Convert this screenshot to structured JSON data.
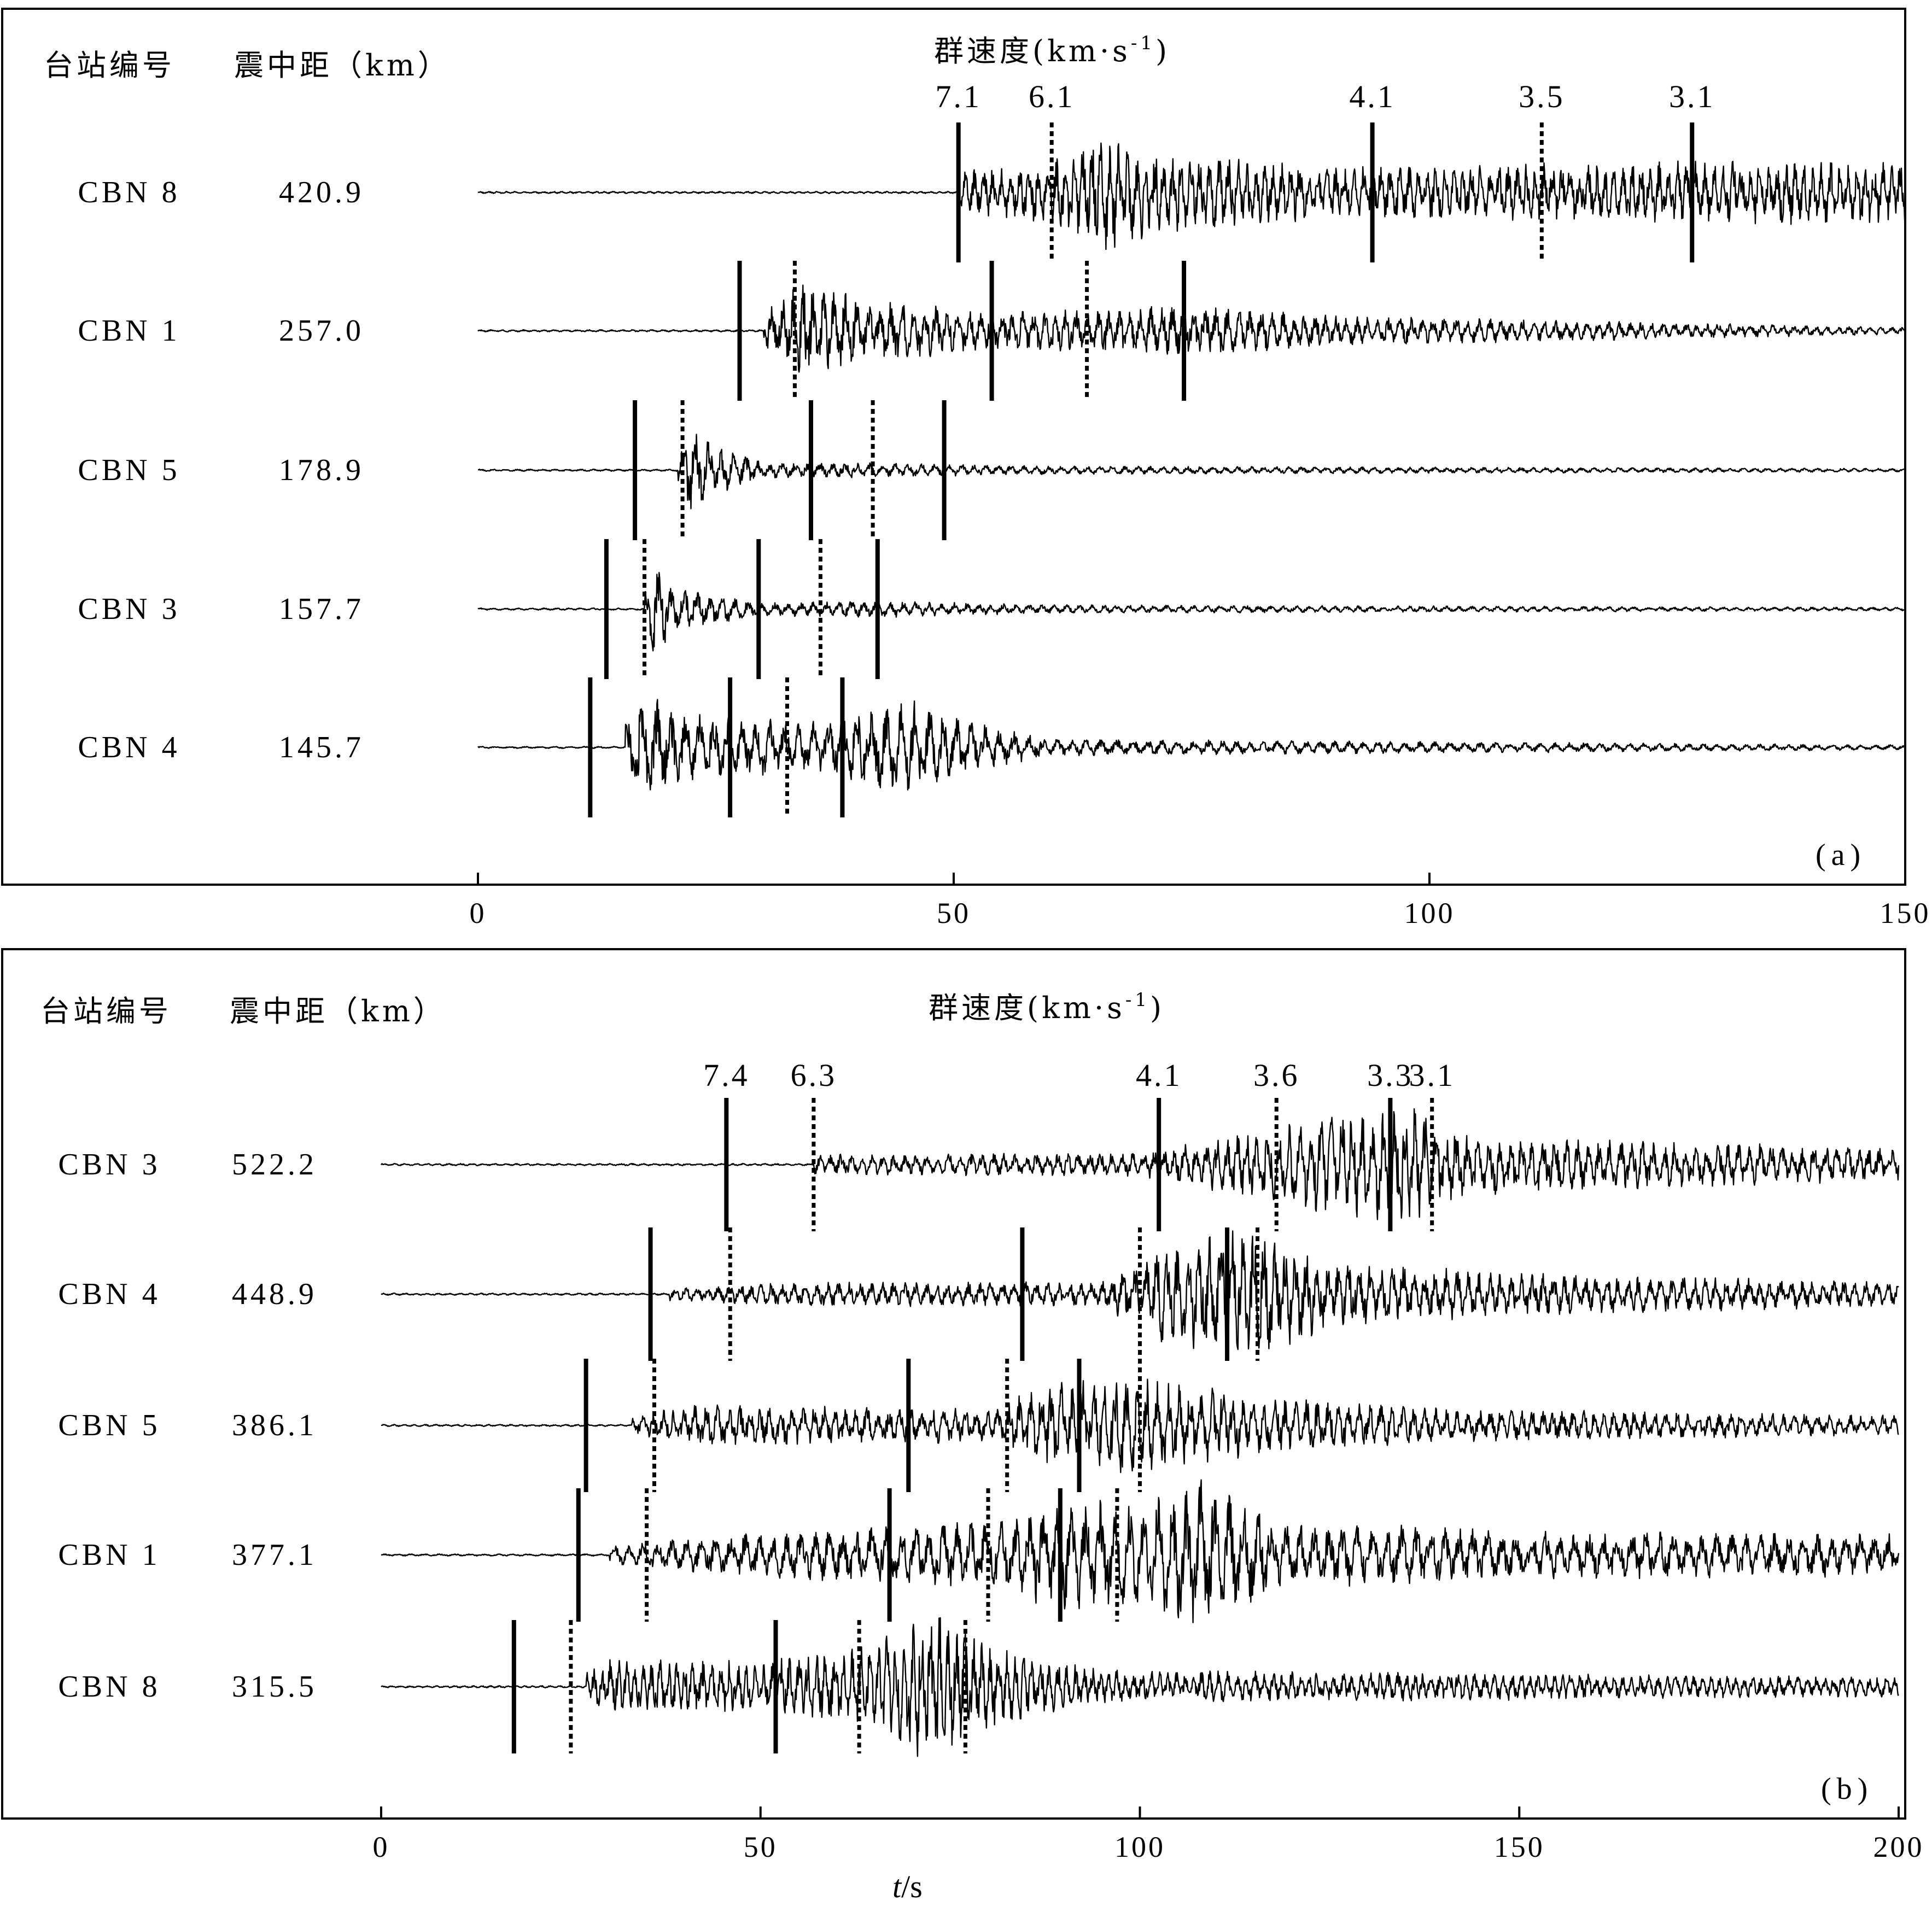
{
  "chart_data": [
    {
      "type": "line",
      "panel_label": "(a)",
      "header_station": "台站编号",
      "header_distance": "震中距（km）",
      "header_velocity": "群速度(km·s",
      "header_velocity_sup": "-1",
      "header_velocity_close": ")",
      "xlim": [
        0,
        150
      ],
      "xticks": [
        0,
        50,
        100,
        150
      ],
      "xticklabels": [
        "0",
        "50",
        "100",
        "150"
      ],
      "velocity_labels": [
        {
          "label": "7.1",
          "time": 50.5
        },
        {
          "label": "6.1",
          "time": 60.3
        },
        {
          "label": "4.1",
          "time": 94.0
        },
        {
          "label": "3.5",
          "time": 111.8
        },
        {
          "label": "3.1",
          "time": 127.6
        }
      ],
      "traces": [
        {
          "station": "CBN 8",
          "distance": "420.9",
          "onset": 50.5,
          "envelope": [
            [
              50.5,
              0.25
            ],
            [
              60,
              0.4
            ],
            [
              66,
              0.7
            ],
            [
              72,
              0.5
            ],
            [
              90,
              0.3
            ],
            [
              110,
              0.35
            ],
            [
              130,
              0.4
            ],
            [
              150,
              0.35
            ]
          ],
          "period": 1.0,
          "markers": [
            {
              "t": 50.5,
              "style": "solid"
            },
            {
              "t": 60.3,
              "style": "dashed"
            },
            {
              "t": 94.0,
              "style": "solid"
            },
            {
              "t": 111.8,
              "style": "dashed"
            },
            {
              "t": 127.6,
              "style": "solid"
            }
          ]
        },
        {
          "station": "CBN 1",
          "distance": "257.0",
          "onset": 30,
          "envelope": [
            [
              30,
              0.2
            ],
            [
              34,
              0.6
            ],
            [
              40,
              0.4
            ],
            [
              55,
              0.22
            ],
            [
              75,
              0.3
            ],
            [
              90,
              0.18
            ],
            [
              150,
              0.04
            ]
          ],
          "period": 1.2,
          "markers": [
            {
              "t": 27.5,
              "style": "solid"
            },
            {
              "t": 33.3,
              "style": "dashed"
            },
            {
              "t": 54.0,
              "style": "solid"
            },
            {
              "t": 64.0,
              "style": "dashed"
            },
            {
              "t": 74.2,
              "style": "solid"
            }
          ]
        },
        {
          "station": "CBN 5",
          "distance": "178.9",
          "onset": 21,
          "envelope": [
            [
              21,
              0.2
            ],
            [
              22.5,
              0.55
            ],
            [
              25,
              0.3
            ],
            [
              30,
              0.1
            ],
            [
              45,
              0.08
            ],
            [
              60,
              0.05
            ],
            [
              150,
              0.02
            ]
          ],
          "period": 1.4,
          "markers": [
            {
              "t": 16.5,
              "style": "solid"
            },
            {
              "t": 21.5,
              "style": "dashed"
            },
            {
              "t": 35.0,
              "style": "solid"
            },
            {
              "t": 41.5,
              "style": "dashed"
            },
            {
              "t": 49.0,
              "style": "solid"
            }
          ]
        },
        {
          "station": "CBN 3",
          "distance": "157.7",
          "onset": 17.5,
          "envelope": [
            [
              17.5,
              0.2
            ],
            [
              18.5,
              0.6
            ],
            [
              21,
              0.25
            ],
            [
              30,
              0.08
            ],
            [
              42,
              0.1
            ],
            [
              60,
              0.05
            ],
            [
              150,
              0.02
            ]
          ],
          "period": 1.4,
          "markers": [
            {
              "t": 13.5,
              "style": "solid"
            },
            {
              "t": 17.5,
              "style": "dashed"
            },
            {
              "t": 29.5,
              "style": "solid"
            },
            {
              "t": 36.0,
              "style": "dashed"
            },
            {
              "t": 42.0,
              "style": "solid"
            }
          ]
        },
        {
          "station": "CBN 4",
          "distance": "145.7",
          "onset": 15.5,
          "envelope": [
            [
              15.5,
              0.3
            ],
            [
              17,
              0.7
            ],
            [
              22,
              0.4
            ],
            [
              35,
              0.3
            ],
            [
              45,
              0.6
            ],
            [
              52,
              0.3
            ],
            [
              60,
              0.1
            ],
            [
              150,
              0.03
            ]
          ],
          "period": 1.6,
          "markers": [
            {
              "t": 11.8,
              "style": "solid"
            },
            {
              "t": 26.5,
              "style": "solid"
            },
            {
              "t": 32.5,
              "style": "dashed"
            },
            {
              "t": 38.3,
              "style": "solid"
            }
          ]
        }
      ]
    },
    {
      "type": "line",
      "panel_label": "(b)",
      "header_station": "台站编号",
      "header_distance": "震中距（km）",
      "header_velocity": "群速度(km·s",
      "header_velocity_sup": "-1",
      "header_velocity_close": ")",
      "xlim": [
        0,
        200
      ],
      "xticks": [
        0,
        50,
        100,
        150,
        200
      ],
      "xticklabels": [
        "0",
        "50",
        "100",
        "150",
        "200"
      ],
      "xlabel_italic": "t",
      "xlabel_rest": "/s",
      "velocity_labels": [
        {
          "label": "7.4",
          "time": 45.5
        },
        {
          "label": "6.3",
          "time": 57.0
        },
        {
          "label": "4.1",
          "time": 102.5
        },
        {
          "label": "3.6",
          "time": 118.0
        },
        {
          "label": "3.3",
          "time": 133.0
        },
        {
          "label": "3.1",
          "time": 138.5
        }
      ],
      "traces": [
        {
          "station": "CBN 3",
          "distance": "522.2",
          "onset": 57,
          "envelope": [
            [
              57,
              0.12
            ],
            [
              100,
              0.14
            ],
            [
              120,
              0.5
            ],
            [
              135,
              0.75
            ],
            [
              142,
              0.4
            ],
            [
              160,
              0.3
            ],
            [
              200,
              0.2
            ]
          ],
          "period": 1.5,
          "markers": [
            {
              "t": 45.5,
              "style": "solid"
            },
            {
              "t": 57.0,
              "style": "dashed"
            },
            {
              "t": 102.5,
              "style": "solid"
            },
            {
              "t": 118.0,
              "style": "dashed"
            },
            {
              "t": 133.0,
              "style": "solid"
            },
            {
              "t": 138.5,
              "style": "dashed"
            }
          ]
        },
        {
          "station": "CBN 4",
          "distance": "448.9",
          "onset": 38,
          "envelope": [
            [
              38,
              0.08
            ],
            [
              55,
              0.14
            ],
            [
              95,
              0.15
            ],
            [
              103,
              0.6
            ],
            [
              115,
              0.8
            ],
            [
              125,
              0.4
            ],
            [
              150,
              0.25
            ],
            [
              200,
              0.15
            ]
          ],
          "period": 1.5,
          "markers": [
            {
              "t": 35.5,
              "style": "solid"
            },
            {
              "t": 46.0,
              "style": "dashed"
            },
            {
              "t": 84.5,
              "style": "solid"
            },
            {
              "t": 100.0,
              "style": "dashed"
            },
            {
              "t": 111.5,
              "style": "solid"
            },
            {
              "t": 115.5,
              "style": "dashed"
            }
          ]
        },
        {
          "station": "CBN 5",
          "distance": "386.1",
          "onset": 33,
          "envelope": [
            [
              33,
              0.1
            ],
            [
              40,
              0.25
            ],
            [
              80,
              0.2
            ],
            [
              88,
              0.5
            ],
            [
              100,
              0.6
            ],
            [
              115,
              0.35
            ],
            [
              140,
              0.2
            ],
            [
              200,
              0.12
            ]
          ],
          "period": 1.5,
          "markers": [
            {
              "t": 27.0,
              "style": "solid"
            },
            {
              "t": 36.0,
              "style": "dashed"
            },
            {
              "t": 69.5,
              "style": "solid"
            },
            {
              "t": 82.5,
              "style": "dashed"
            },
            {
              "t": 92.0,
              "style": "solid"
            },
            {
              "t": 100.0,
              "style": "dashed"
            }
          ]
        },
        {
          "station": "CBN 1",
          "distance": "377.1",
          "onset": 30,
          "envelope": [
            [
              30,
              0.1
            ],
            [
              45,
              0.25
            ],
            [
              80,
              0.4
            ],
            [
              90,
              0.7
            ],
            [
              100,
              0.6
            ],
            [
              108,
              0.9
            ],
            [
              118,
              0.4
            ],
            [
              150,
              0.3
            ],
            [
              200,
              0.25
            ]
          ],
          "period": 2.0,
          "markers": [
            {
              "t": 26.0,
              "style": "solid"
            },
            {
              "t": 35.0,
              "style": "dashed"
            },
            {
              "t": 67.0,
              "style": "solid"
            },
            {
              "t": 80.0,
              "style": "dashed"
            },
            {
              "t": 89.5,
              "style": "solid"
            },
            {
              "t": 97.0,
              "style": "dashed"
            }
          ]
        },
        {
          "station": "CBN 8",
          "distance": "315.5",
          "onset": 27,
          "envelope": [
            [
              27,
              0.2
            ],
            [
              30,
              0.35
            ],
            [
              50,
              0.3
            ],
            [
              65,
              0.5
            ],
            [
              72,
              0.95
            ],
            [
              80,
              0.5
            ],
            [
              95,
              0.2
            ],
            [
              200,
              0.12
            ]
          ],
          "period": 1.2,
          "markers": [
            {
              "t": 17.5,
              "style": "solid"
            },
            {
              "t": 25.0,
              "style": "dashed"
            },
            {
              "t": 52.0,
              "style": "solid"
            },
            {
              "t": 63.0,
              "style": "dashed"
            },
            {
              "t": 77.0,
              "style": "dashed"
            }
          ]
        }
      ]
    }
  ]
}
